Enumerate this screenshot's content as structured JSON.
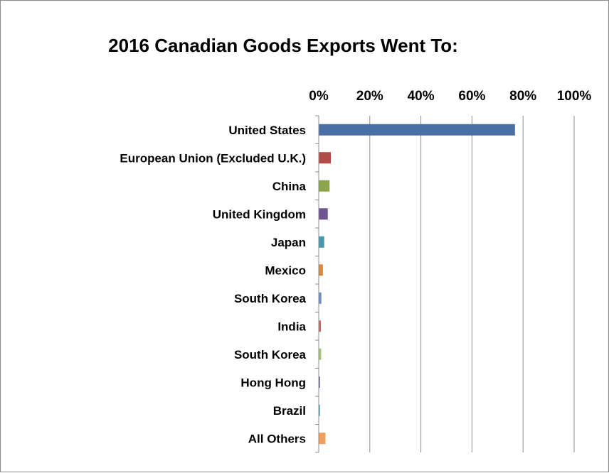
{
  "chart_data": {
    "type": "bar",
    "orientation": "horizontal",
    "title": "2016 Canadian Goods Exports Went To:",
    "xlabel": "",
    "ylabel": "",
    "xlim": [
      0,
      100
    ],
    "x_ticks": [
      "0%",
      "20%",
      "40%",
      "60%",
      "80%",
      "100%"
    ],
    "x_axis_position": "top",
    "grid": true,
    "legend": "none",
    "categories": [
      "United States",
      "European Union (Excluded U.K.)",
      "China",
      "United Kingdom",
      "Japan",
      "Mexico",
      "South Korea",
      "India",
      "South Korea",
      "Hong Hong",
      "Brazil",
      "All Others"
    ],
    "values": [
      76.7,
      4.6,
      4.1,
      3.4,
      2.0,
      1.5,
      0.9,
      0.7,
      0.8,
      0.4,
      0.3,
      2.5
    ],
    "unit": "%",
    "colors": [
      "#4a6fa5",
      "#b24c48",
      "#8aa54d",
      "#6d5591",
      "#4597ad",
      "#d9893f",
      "#6f8fc4",
      "#c46b6b",
      "#a8c276",
      "#8a78b0",
      "#6fb3c7",
      "#f0a05c"
    ]
  }
}
